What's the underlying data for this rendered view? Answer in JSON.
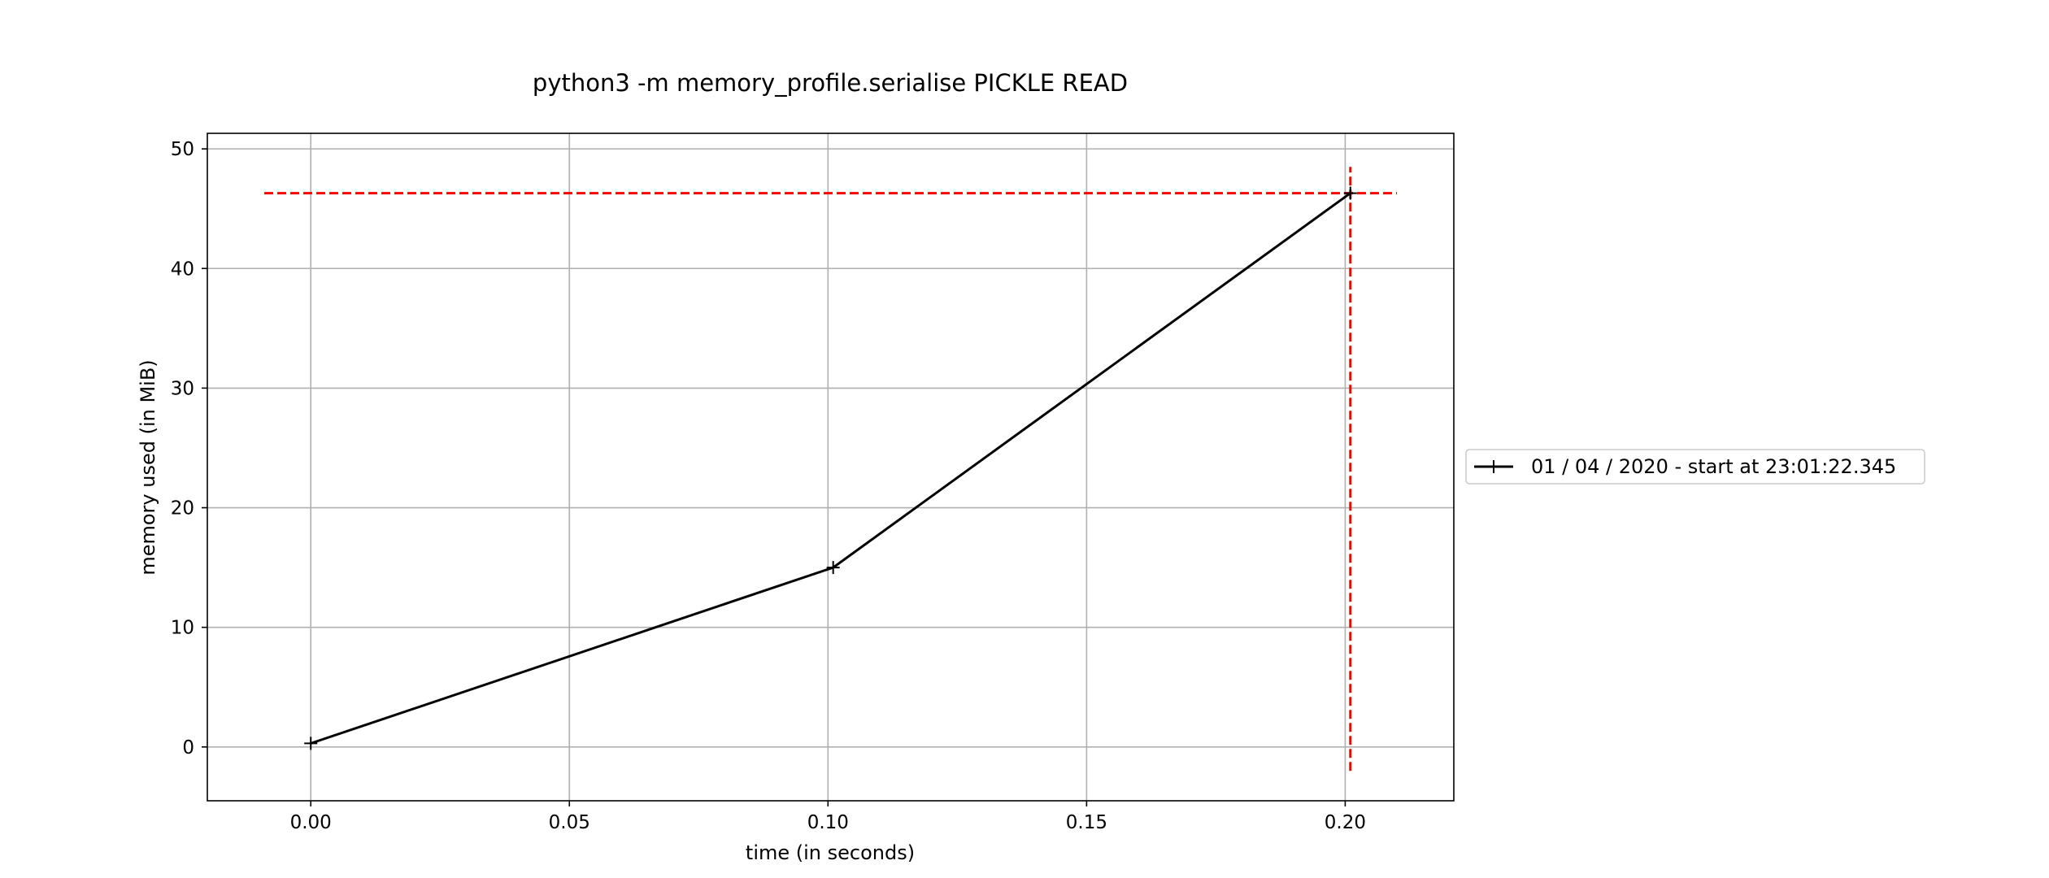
{
  "chart_data": {
    "type": "line",
    "title": "python3 -m memory_profile.serialise PICKLE READ",
    "xlabel": "time (in seconds)",
    "ylabel": "memory used (in MiB)",
    "xlim": [
      -0.02,
      0.221
    ],
    "ylim": [
      -4.5,
      51.3
    ],
    "x_ticks": [
      0.0,
      0.05,
      0.1,
      0.15,
      0.2
    ],
    "x_tick_labels": [
      "0.00",
      "0.05",
      "0.10",
      "0.15",
      "0.20"
    ],
    "y_ticks": [
      0,
      10,
      20,
      30,
      40,
      50
    ],
    "y_tick_labels": [
      "0",
      "10",
      "20",
      "30",
      "40",
      "50"
    ],
    "grid": true,
    "legend_position": "right-outside",
    "series": [
      {
        "name": "01 / 04 / 2020 - start at 23:01:22.345",
        "color": "#000000",
        "marker": "+",
        "x": [
          0.0,
          0.101,
          0.201
        ],
        "y": [
          0.3,
          15.0,
          46.3
        ]
      }
    ],
    "reference_lines": [
      {
        "orientation": "horizontal",
        "value": 46.3,
        "from": -0.009,
        "to": 0.21,
        "color": "#ff0000",
        "style": "dashed"
      },
      {
        "orientation": "vertical",
        "value": 0.201,
        "from": -2.0,
        "to": 48.5,
        "color": "#ff0000",
        "style": "dashed"
      }
    ]
  }
}
